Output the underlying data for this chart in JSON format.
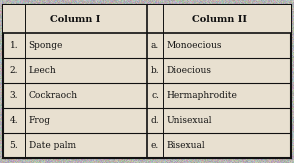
{
  "col1_header": "Column I",
  "col2_header": "Column II",
  "col1_nums": [
    "1.",
    "2.",
    "3.",
    "4.",
    "5."
  ],
  "col1_items": [
    "Sponge",
    "Leech",
    "Cockraoch",
    "Frog",
    "Date palm"
  ],
  "col2_nums": [
    "a.",
    "b.",
    "c.",
    "d.",
    "e."
  ],
  "col2_items": [
    "Monoecious",
    "Dioecious",
    "Hermaphrodite",
    "Unisexual",
    "Bisexual"
  ],
  "bg_color": "#c8c0b0",
  "border_color": "#111111",
  "text_color": "#111111",
  "header_color": "#111111",
  "figsize": [
    2.94,
    1.63
  ],
  "dpi": 100
}
